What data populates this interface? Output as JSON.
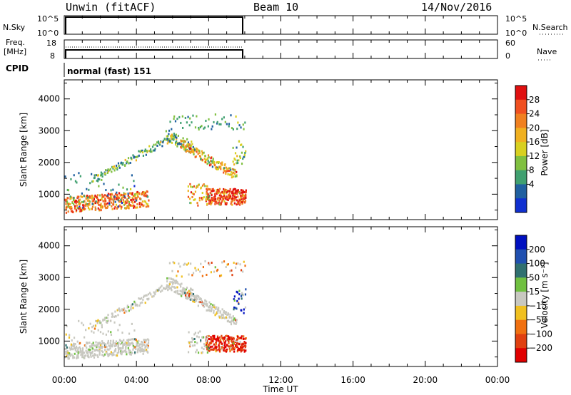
{
  "header": {
    "radar": "Unwin (fitACF)",
    "beam": "Beam 10",
    "date": "14/Nov/2016"
  },
  "nsky_panel": {
    "label": "N.Sky",
    "ticks": [
      "10^5",
      "10^0"
    ],
    "right_ticks": [
      "10^5",
      "10^0"
    ],
    "right_label": "N.Search"
  },
  "freq_panel": {
    "label_line1": "Freq.",
    "label_line2": "[MHz]",
    "ticks": [
      "18",
      "8"
    ],
    "right_ticks": [
      "60",
      "0"
    ],
    "right_label": "Nave"
  },
  "cpid_panel": {
    "label": "CPID",
    "text": "normal (fast) 151"
  },
  "chart_data": [
    {
      "type": "heatmap",
      "name": "power",
      "ylabel": "Slant Range [km]",
      "yticks": [
        "4000",
        "3000",
        "2000",
        "1000"
      ],
      "ylim": [
        200,
        4600
      ],
      "colorbar": {
        "label": "Power [dB]",
        "ticks": [
          "28",
          "24",
          "20",
          "16",
          "12",
          "8",
          "4"
        ],
        "colors": [
          "#e01010",
          "#f05020",
          "#f08020",
          "#f0b020",
          "#d8d020",
          "#80c040",
          "#40a070",
          "#2060a0",
          "#1030d0"
        ]
      }
    },
    {
      "type": "heatmap",
      "name": "velocity",
      "ylabel": "Slant Range [km]",
      "yticks": [
        "4000",
        "3000",
        "2000",
        "1000"
      ],
      "ylim": [
        200,
        4600
      ],
      "colorbar": {
        "label": "Velocity [m s⁻¹]",
        "ticks": [
          "200",
          "100",
          "50",
          "15",
          "−15",
          "−50",
          "−100",
          "−200"
        ],
        "colors": [
          "#0010c0",
          "#2050b0",
          "#307070",
          "#70c040",
          "#c8c8c0",
          "#f0c020",
          "#f07010",
          "#e04010",
          "#e00000"
        ]
      }
    }
  ],
  "x_axis": {
    "ticks": [
      "00:00",
      "04:00",
      "08:00",
      "12:00",
      "16:00",
      "20:00",
      "00:00"
    ],
    "label": "Time UT"
  }
}
